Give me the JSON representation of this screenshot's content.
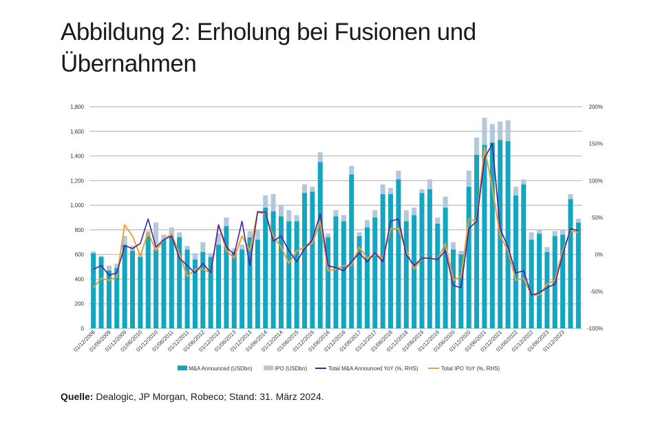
{
  "title_lines": [
    "Abbildung 2: Erholung bei Fusionen und",
    "Übernahmen"
  ],
  "source": {
    "label": "Quelle:",
    "text": "Dealogic, JP Morgan, Robeco; Stand: 31. März 2024."
  },
  "chart_data": {
    "type": "bar",
    "title": "Abbildung 2: Erholung bei Fusionen und Übernahmen",
    "ylim_left": [
      0,
      1800
    ],
    "ylim_right": [
      -100,
      200
    ],
    "left_ticks": [
      "0",
      "200",
      "400",
      "600",
      "800",
      "1,000",
      "1,200",
      "1,400",
      "1,600",
      "1,800"
    ],
    "right_ticks": [
      "-100%",
      "-50%",
      "0%",
      "50%",
      "100%",
      "150%",
      "200%"
    ],
    "x_tick_labels": [
      "01/12/2008",
      "01/06/2009",
      "01/12/2009",
      "01/06/2010",
      "01/12/2010",
      "01/06/2011",
      "01/12/2011",
      "01/06/2012",
      "01/12/2012",
      "01/06/2013",
      "01/12/2013",
      "01/06/2014",
      "01/12/2014",
      "01/06/2015",
      "01/12/2015",
      "01/06/2016",
      "01/12/2016",
      "01/06/2017",
      "01/12/2017",
      "01/06/2018",
      "01/12/2018",
      "01/06/2019",
      "01/12/2019",
      "01/06/2020",
      "01/12/2020",
      "01/06/2021",
      "01/12/2021",
      "01/06/2022",
      "01/12/2022",
      "01/06/2023",
      "01/12/2023"
    ],
    "colors": {
      "ma": "#14a5c0",
      "ipo": "#b4c8dc",
      "ma_yoy": "#4b1ea0",
      "ipo_yoy": "#f0a032",
      "grid": "#8c8c8c"
    },
    "series": [
      {
        "name": "M&A Announced (USDbn)",
        "type": "bar-stacked",
        "axis": "left",
        "values": [
          610,
          580,
          470,
          490,
          680,
          630,
          580,
          750,
          640,
          720,
          750,
          740,
          640,
          560,
          620,
          580,
          680,
          830,
          620,
          640,
          740,
          720,
          980,
          950,
          910,
          870,
          870,
          1100,
          1110,
          1350,
          740,
          910,
          870,
          1250,
          750,
          820,
          900,
          1090,
          1090,
          1210,
          870,
          920,
          1100,
          1130,
          850,
          980,
          640,
          600,
          1150,
          1410,
          1490,
          1510,
          1530,
          1520,
          1080,
          1170,
          720,
          770,
          620,
          750,
          760,
          1050,
          860
        ]
      },
      {
        "name": "IPO (USDbn)",
        "type": "bar-stacked",
        "axis": "left",
        "values": [
          15,
          10,
          40,
          35,
          70,
          40,
          30,
          40,
          220,
          40,
          70,
          40,
          30,
          50,
          80,
          30,
          90,
          70,
          30,
          40,
          50,
          80,
          100,
          140,
          90,
          90,
          50,
          70,
          40,
          80,
          30,
          50,
          50,
          70,
          30,
          60,
          60,
          80,
          50,
          70,
          90,
          60,
          30,
          80,
          50,
          90,
          60,
          30,
          130,
          140,
          220,
          150,
          150,
          170,
          70,
          40,
          60,
          30,
          40,
          40,
          40,
          40,
          30
        ]
      },
      {
        "name": "Total M&A Announced YoY (%, RHS)",
        "type": "line",
        "axis": "right",
        "values": [
          -20,
          -15,
          -28,
          -25,
          12,
          8,
          15,
          48,
          10,
          20,
          25,
          -5,
          -15,
          -25,
          -12,
          -25,
          40,
          10,
          0,
          45,
          -15,
          58,
          57,
          18,
          25,
          5,
          -10,
          8,
          20,
          55,
          -15,
          -18,
          -22,
          -10,
          2,
          -10,
          2,
          -10,
          45,
          48,
          0,
          -15,
          -5,
          -5,
          -7,
          5,
          -42,
          -45,
          35,
          45,
          130,
          150,
          35,
          10,
          -25,
          -22,
          -55,
          -52,
          -45,
          -40,
          0,
          35,
          32
        ]
      },
      {
        "name": "Total IPO YoY (%, RHS)",
        "type": "line",
        "axis": "right",
        "values": [
          -45,
          -32,
          -35,
          -30,
          40,
          25,
          -2,
          30,
          5,
          20,
          28,
          0,
          -30,
          -20,
          -20,
          -25,
          40,
          5,
          -5,
          25,
          5,
          57,
          55,
          25,
          10,
          -12,
          5,
          10,
          15,
          45,
          -22,
          -20,
          -15,
          -15,
          10,
          -5,
          0,
          -5,
          35,
          35,
          5,
          -20,
          -5,
          -5,
          -7,
          15,
          -35,
          -30,
          48,
          45,
          145,
          90,
          25,
          5,
          -35,
          -32,
          -55,
          -55,
          -40,
          -35,
          5,
          32,
          30
        ]
      }
    ],
    "legend": [
      "M&A Announced (USDbn)",
      "IPO (USDbn)",
      "Total M&A Announced YoY (%, RHS)",
      "Total IPO YoY (%, RHS)"
    ],
    "legend_position": "bottom",
    "grid": true
  }
}
